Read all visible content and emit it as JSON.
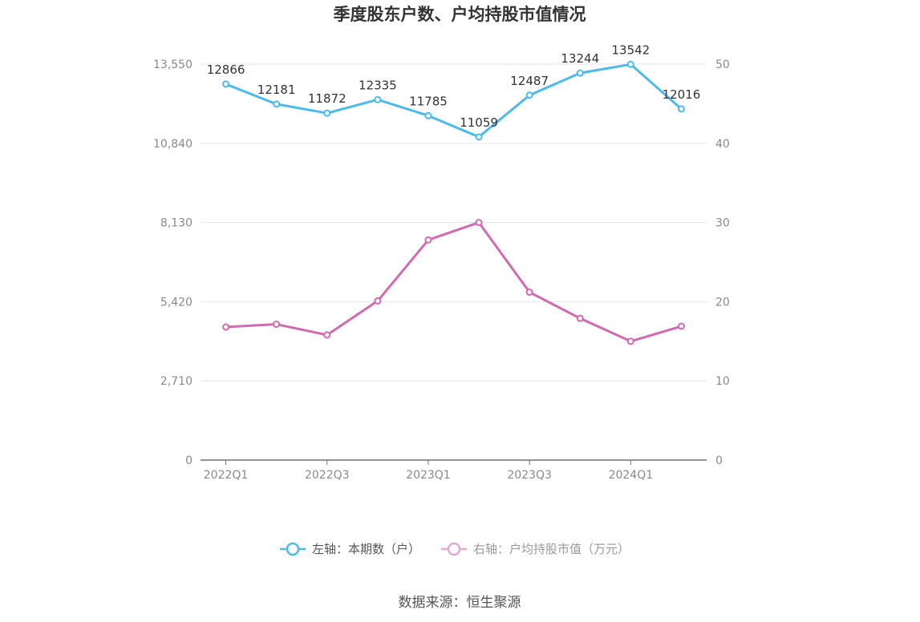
{
  "chart_data": {
    "type": "line",
    "title": "季度股东户数、户均持股市值情况",
    "categories": [
      "2022Q1",
      "2022Q2",
      "2022Q3",
      "2022Q4",
      "2023Q1",
      "2023Q2",
      "2023Q3",
      "2023Q4",
      "2024Q1",
      "2024Q2"
    ],
    "x_tick_labels": [
      "2022Q1",
      "2022Q3",
      "2023Q1",
      "2023Q3",
      "2024Q1"
    ],
    "left_axis": {
      "ylim": [
        0,
        13550
      ],
      "ticks": [
        "0",
        "2,710",
        "5,420",
        "8,130",
        "10,840",
        "13,550"
      ]
    },
    "right_axis": {
      "ylim": [
        0,
        50
      ],
      "ticks": [
        "0",
        "10",
        "20",
        "30",
        "40",
        "50"
      ]
    },
    "grid": true,
    "legend_position": "bottom",
    "series": [
      {
        "name": "左轴：本期数（户）",
        "axis": "left",
        "color": "#4dbaed",
        "values": [
          12866,
          12181,
          11872,
          12335,
          11785,
          11059,
          12487,
          13244,
          13542,
          12016
        ],
        "labels": [
          "12866",
          "12181",
          "11872",
          "12335",
          "11785",
          "11059",
          "12487",
          "13244",
          "13542",
          "12016"
        ]
      },
      {
        "name": "右轴：户均持股市值（万元）",
        "axis": "right",
        "color": "#d16ab0",
        "values": [
          16.8,
          17.15,
          15.8,
          20.1,
          27.8,
          30.0,
          21.2,
          17.9,
          15.0,
          16.9
        ]
      }
    ],
    "source": "数据来源：恒生聚源"
  }
}
